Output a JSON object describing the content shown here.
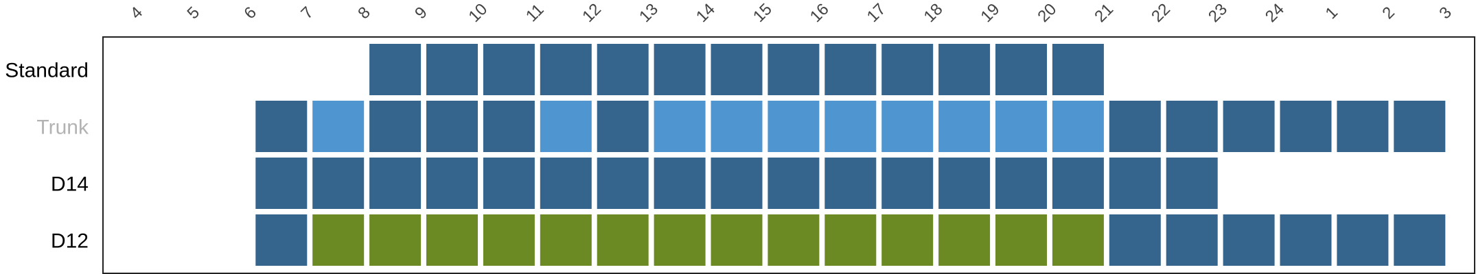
{
  "chart_data": {
    "type": "heatmap",
    "title": "",
    "xlabel": "",
    "ylabel": "",
    "hours": [
      "4",
      "5",
      "6",
      "7",
      "8",
      "9",
      "10",
      "11",
      "12",
      "13",
      "14",
      "15",
      "16",
      "17",
      "18",
      "19",
      "20",
      "21",
      "22",
      "23",
      "24",
      "1",
      "2",
      "3"
    ],
    "rows": [
      {
        "label": "Standard",
        "label_color": "#000000",
        "active": true,
        "cells": [
          0,
          0,
          0,
          0,
          1,
          1,
          1,
          1,
          1,
          1,
          1,
          1,
          1,
          1,
          1,
          1,
          1,
          0,
          0,
          0,
          0,
          0,
          0,
          0
        ]
      },
      {
        "label": "Trunk",
        "label_color": "#b3b3b3",
        "active": false,
        "cells": [
          0,
          0,
          1,
          2,
          1,
          1,
          1,
          2,
          1,
          2,
          2,
          2,
          2,
          2,
          2,
          2,
          2,
          1,
          1,
          1,
          1,
          1,
          1,
          0
        ]
      },
      {
        "label": "D14",
        "label_color": "#000000",
        "active": true,
        "cells": [
          0,
          0,
          1,
          1,
          1,
          1,
          1,
          1,
          1,
          1,
          1,
          1,
          1,
          1,
          1,
          1,
          1,
          1,
          1,
          0,
          0,
          0,
          0,
          0
        ]
      },
      {
        "label": "D12",
        "label_color": "#000000",
        "active": true,
        "cells": [
          0,
          0,
          1,
          3,
          3,
          3,
          3,
          3,
          3,
          3,
          3,
          3,
          3,
          3,
          3,
          3,
          3,
          1,
          1,
          1,
          1,
          1,
          1,
          0
        ]
      }
    ],
    "categories": [
      {
        "code": 0,
        "name": "none",
        "color": null
      },
      {
        "code": 1,
        "name": "standard",
        "color": "#35648c"
      },
      {
        "code": 2,
        "name": "trunk-highlight",
        "color": "#4f95d0"
      },
      {
        "code": 3,
        "name": "d12-highlight",
        "color": "#6b8a23"
      }
    ],
    "grid": false,
    "legend": "none"
  }
}
